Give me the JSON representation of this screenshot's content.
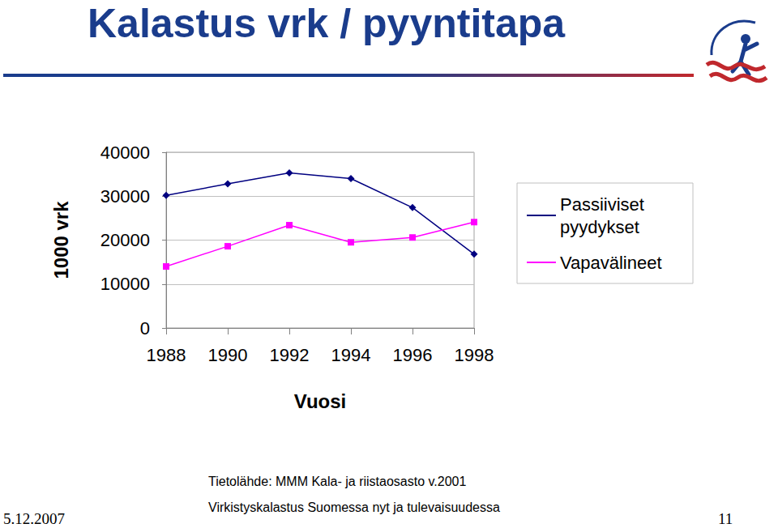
{
  "slide": {
    "title": "Kalastus vrk / pyyntitapa",
    "source": "Tietolähde: MMM Kala- ja riistaosasto v.2001",
    "footer": "Virkistyskalastus Suomessa nyt ja tulevaisuudessa",
    "date": "5.12.2007",
    "page": "11"
  },
  "chart_data": {
    "type": "line",
    "x_label": "Vuosi",
    "y_label": "1000 vrk",
    "categories": [
      "1988",
      "1990",
      "1992",
      "1994",
      "1996",
      "1998"
    ],
    "series": [
      {
        "name": "Passiiviset pyydykset",
        "color": "#000080",
        "marker": "diamond",
        "values": [
          30200,
          32800,
          35300,
          34000,
          27400,
          16800
        ]
      },
      {
        "name": "Vapavälineet",
        "color": "#ff00ff",
        "marker": "square",
        "values": [
          14000,
          18600,
          23400,
          19500,
          20600,
          24100
        ]
      }
    ],
    "ylim": [
      0,
      40000
    ],
    "yticks": [
      0,
      10000,
      20000,
      30000,
      40000
    ],
    "grid": true,
    "legend": "right"
  }
}
